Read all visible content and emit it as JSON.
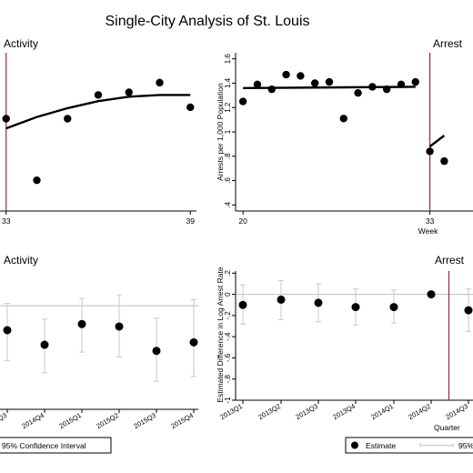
{
  "figure": {
    "title": "Single-City Analysis of St. Louis",
    "colors": {
      "marker": "#000000",
      "event_line": "#a0283c",
      "ci": "#c8c8c8",
      "ref_line": "#bdbdbd",
      "fit": "#000000"
    }
  },
  "chart_data": [
    {
      "id": "top-left",
      "type": "scatter",
      "title": "Activity",
      "x": [
        33,
        34,
        35,
        36,
        37,
        38,
        39
      ],
      "y": [
        1.45,
        0.75,
        1.45,
        1.72,
        1.75,
        1.86,
        1.58
      ],
      "fit": {
        "type": "quadratic",
        "x": [
          33,
          34,
          35,
          36,
          37,
          38,
          39
        ],
        "y": [
          1.34,
          1.47,
          1.57,
          1.65,
          1.7,
          1.72,
          1.72
        ]
      },
      "event_x": 33,
      "xticks": [
        33,
        39
      ],
      "xlim": [
        32.8,
        39.2
      ],
      "ylim": [
        0.4,
        2.2
      ]
    },
    {
      "id": "top-right",
      "type": "scatter",
      "title": "Arrest",
      "xlabel": "Week",
      "ylabel": "Arrests per 1,000 Population",
      "x": [
        20,
        21,
        22,
        23,
        24,
        25,
        26,
        27,
        28,
        29,
        30,
        31,
        32,
        33,
        34
      ],
      "y": [
        1.25,
        1.39,
        1.35,
        1.47,
        1.46,
        1.4,
        1.41,
        1.11,
        1.32,
        1.37,
        1.35,
        1.39,
        1.41,
        0.84,
        0.76
      ],
      "fit": {
        "type": "linear",
        "x": [
          20,
          32
        ],
        "y": [
          1.36,
          1.37
        ]
      },
      "fit2": {
        "x": [
          33,
          34
        ],
        "y": [
          0.88,
          0.97
        ]
      },
      "event_x": 33,
      "xticks": [
        20,
        33
      ],
      "yticks": [
        0.4,
        0.6,
        0.8,
        1.0,
        1.2,
        1.4,
        1.6
      ],
      "ytick_labels": [
        ".4",
        ".6",
        ".8",
        "1",
        "1.2",
        "1.4",
        "1.6"
      ],
      "xlim": [
        19.8,
        36.0
      ],
      "ylim": [
        0.35,
        1.65
      ]
    },
    {
      "id": "bottom-left",
      "type": "scatter",
      "title": "Activity",
      "categories": [
        "2014Q3",
        "2014Q4",
        "2015Q1",
        "2015Q2",
        "2015Q3",
        "2015Q4"
      ],
      "estimate": [
        -0.2,
        -0.32,
        -0.15,
        -0.17,
        -0.37,
        -0.3
      ],
      "ci_low": [
        -0.45,
        -0.55,
        -0.38,
        -0.42,
        -0.62,
        -0.58
      ],
      "ci_high": [
        0.02,
        -0.11,
        0.06,
        0.09,
        -0.1,
        0.05
      ],
      "ref_y": 0,
      "ylim": [
        -0.85,
        0.3
      ],
      "legend": {
        "ci": "95% Confidence Interval"
      }
    },
    {
      "id": "bottom-right",
      "type": "scatter",
      "title": "Arrest",
      "xlabel": "Quarter",
      "ylabel": "Estimated Difference in Log Arrest Rate",
      "categories": [
        "2013Q1",
        "2013Q2",
        "2013Q3",
        "2013Q4",
        "2014Q1",
        "2014Q2",
        "2014Q3"
      ],
      "estimate": [
        -0.1,
        -0.05,
        -0.08,
        -0.12,
        -0.12,
        0.0,
        -0.15
      ],
      "ci_low": [
        -0.28,
        -0.24,
        -0.26,
        -0.29,
        -0.27,
        0.0,
        -0.35
      ],
      "ci_high": [
        0.09,
        0.13,
        0.1,
        0.05,
        0.04,
        0.0,
        0.05
      ],
      "event_x": 5.5,
      "ref_y": 0,
      "yticks": [
        -1.0,
        -0.8,
        -0.6,
        -0.4,
        -0.2,
        0.0,
        0.2
      ],
      "ytick_labels": [
        "-1",
        "-.8",
        "-.6",
        "-.4",
        "-.2",
        "0",
        ".2"
      ],
      "ylim": [
        -1.0,
        0.22
      ],
      "legend": {
        "estimate": "Estimate",
        "ci": "95%"
      }
    }
  ]
}
